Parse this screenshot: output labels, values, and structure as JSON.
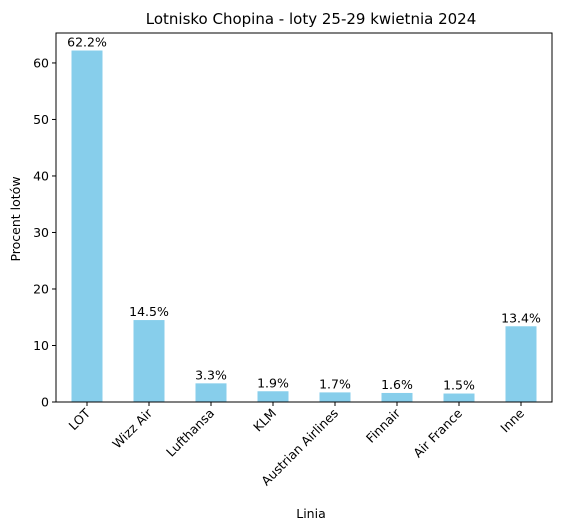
{
  "chart_data": {
    "type": "bar",
    "title": "Lotnisko Chopina - loty 25-29 kwietnia 2024",
    "xlabel": "Linia",
    "ylabel": "Procent lotów",
    "categories": [
      "LOT",
      "Wizz Air",
      "Lufthansa",
      "KLM",
      "Austrian Airlines",
      "Finnair",
      "Air France",
      "Inne"
    ],
    "values": [
      62.2,
      14.5,
      3.3,
      1.9,
      1.7,
      1.6,
      1.5,
      13.4
    ],
    "data_labels": [
      "62.2%",
      "14.5%",
      "3.3%",
      "1.9%",
      "1.7%",
      "1.6%",
      "1.5%",
      "13.4%"
    ],
    "yticks": [
      0,
      10,
      20,
      30,
      40,
      50,
      60
    ],
    "ylim": [
      0,
      65.3
    ],
    "bar_color": "#87ceeb",
    "grid": false,
    "legend": "none"
  }
}
